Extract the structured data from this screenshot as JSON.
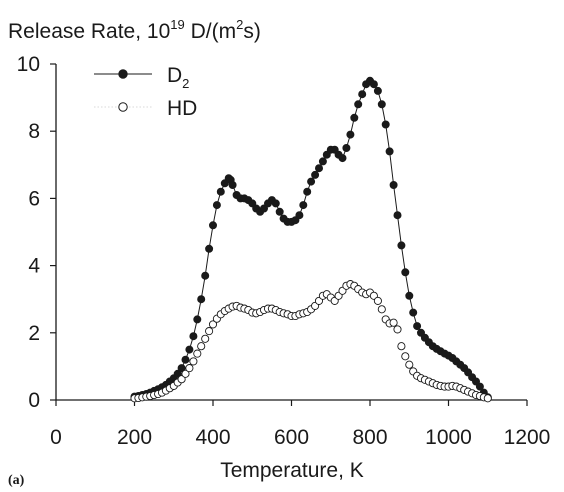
{
  "chart_data": {
    "type": "scatter",
    "title": "",
    "ylabel_main": "Release Rate, 10",
    "ylabel_exp": "19",
    "ylabel_unit": " D/(m",
    "ylabel_unit_exp": "2",
    "ylabel_tail": "s)",
    "xlabel": "Temperature, K",
    "panel_label": "(a)",
    "xlim": [
      0,
      1200
    ],
    "ylim": [
      0,
      10
    ],
    "xticks": [
      0,
      200,
      400,
      600,
      800,
      1000,
      1200
    ],
    "yticks": [
      0,
      2,
      4,
      6,
      8,
      10
    ],
    "grid": false,
    "legend_position": "top-left",
    "series": [
      {
        "name": "D",
        "name_sub": "2",
        "marker": "filled-circle",
        "line": true,
        "color": "#1a1a1a",
        "x": [
          200,
          210,
          220,
          230,
          240,
          250,
          260,
          270,
          280,
          290,
          300,
          310,
          320,
          330,
          340,
          350,
          360,
          370,
          380,
          390,
          400,
          410,
          420,
          430,
          440,
          445,
          450,
          460,
          470,
          480,
          490,
          500,
          510,
          520,
          530,
          540,
          550,
          560,
          570,
          580,
          590,
          600,
          610,
          620,
          630,
          640,
          650,
          660,
          670,
          680,
          690,
          700,
          710,
          720,
          730,
          740,
          750,
          760,
          770,
          780,
          790,
          800,
          810,
          820,
          830,
          840,
          850,
          860,
          870,
          880,
          890,
          900,
          910,
          920,
          930,
          940,
          950,
          960,
          970,
          980,
          990,
          1000,
          1010,
          1020,
          1030,
          1040,
          1050,
          1060,
          1070,
          1080,
          1090,
          1100
        ],
        "y": [
          0.1,
          0.12,
          0.15,
          0.18,
          0.22,
          0.27,
          0.32,
          0.38,
          0.45,
          0.55,
          0.65,
          0.78,
          0.95,
          1.2,
          1.5,
          1.9,
          2.4,
          3.0,
          3.7,
          4.5,
          5.2,
          5.8,
          6.2,
          6.45,
          6.6,
          6.55,
          6.4,
          6.1,
          6.0,
          6.0,
          5.95,
          5.85,
          5.7,
          5.6,
          5.7,
          5.85,
          5.95,
          5.85,
          5.6,
          5.4,
          5.3,
          5.3,
          5.35,
          5.5,
          5.8,
          6.2,
          6.5,
          6.7,
          6.9,
          7.1,
          7.3,
          7.45,
          7.45,
          7.3,
          7.2,
          7.5,
          7.9,
          8.4,
          8.8,
          9.1,
          9.4,
          9.5,
          9.4,
          9.2,
          8.8,
          8.2,
          7.4,
          6.4,
          5.5,
          4.6,
          3.8,
          3.1,
          2.6,
          2.2,
          2.0,
          1.85,
          1.72,
          1.6,
          1.52,
          1.45,
          1.38,
          1.32,
          1.25,
          1.15,
          1.05,
          0.95,
          0.82,
          0.68,
          0.55,
          0.4,
          0.22,
          0.08
        ]
      },
      {
        "name": "HD",
        "marker": "open-circle",
        "line": false,
        "color": "#1a1a1a",
        "x": [
          200,
          210,
          220,
          230,
          240,
          250,
          260,
          270,
          280,
          290,
          300,
          310,
          320,
          330,
          340,
          350,
          360,
          370,
          380,
          390,
          400,
          410,
          420,
          430,
          440,
          450,
          460,
          470,
          480,
          490,
          500,
          510,
          520,
          530,
          540,
          550,
          560,
          570,
          580,
          590,
          600,
          610,
          620,
          630,
          640,
          650,
          660,
          670,
          680,
          690,
          700,
          710,
          720,
          730,
          740,
          750,
          760,
          770,
          780,
          790,
          800,
          810,
          820,
          830,
          840,
          850,
          860,
          870,
          880,
          890,
          900,
          910,
          920,
          930,
          940,
          950,
          960,
          970,
          980,
          990,
          1000,
          1010,
          1020,
          1030,
          1040,
          1050,
          1060,
          1070,
          1080,
          1090,
          1100
        ],
        "y": [
          0.05,
          0.06,
          0.08,
          0.1,
          0.12,
          0.15,
          0.18,
          0.22,
          0.28,
          0.35,
          0.42,
          0.52,
          0.62,
          0.78,
          0.95,
          1.15,
          1.38,
          1.6,
          1.82,
          2.05,
          2.25,
          2.42,
          2.55,
          2.65,
          2.72,
          2.78,
          2.8,
          2.75,
          2.72,
          2.68,
          2.6,
          2.58,
          2.62,
          2.68,
          2.72,
          2.72,
          2.68,
          2.62,
          2.58,
          2.55,
          2.5,
          2.5,
          2.55,
          2.58,
          2.62,
          2.7,
          2.8,
          2.95,
          3.1,
          3.15,
          3.05,
          2.95,
          3.1,
          3.25,
          3.4,
          3.45,
          3.4,
          3.3,
          3.2,
          3.15,
          3.2,
          3.1,
          2.95,
          2.7,
          2.4,
          2.28,
          2.3,
          2.1,
          1.6,
          1.3,
          1.05,
          0.85,
          0.72,
          0.65,
          0.6,
          0.55,
          0.5,
          0.45,
          0.42,
          0.4,
          0.4,
          0.42,
          0.4,
          0.35,
          0.3,
          0.25,
          0.2,
          0.15,
          0.12,
          0.08,
          0.05
        ]
      }
    ]
  }
}
